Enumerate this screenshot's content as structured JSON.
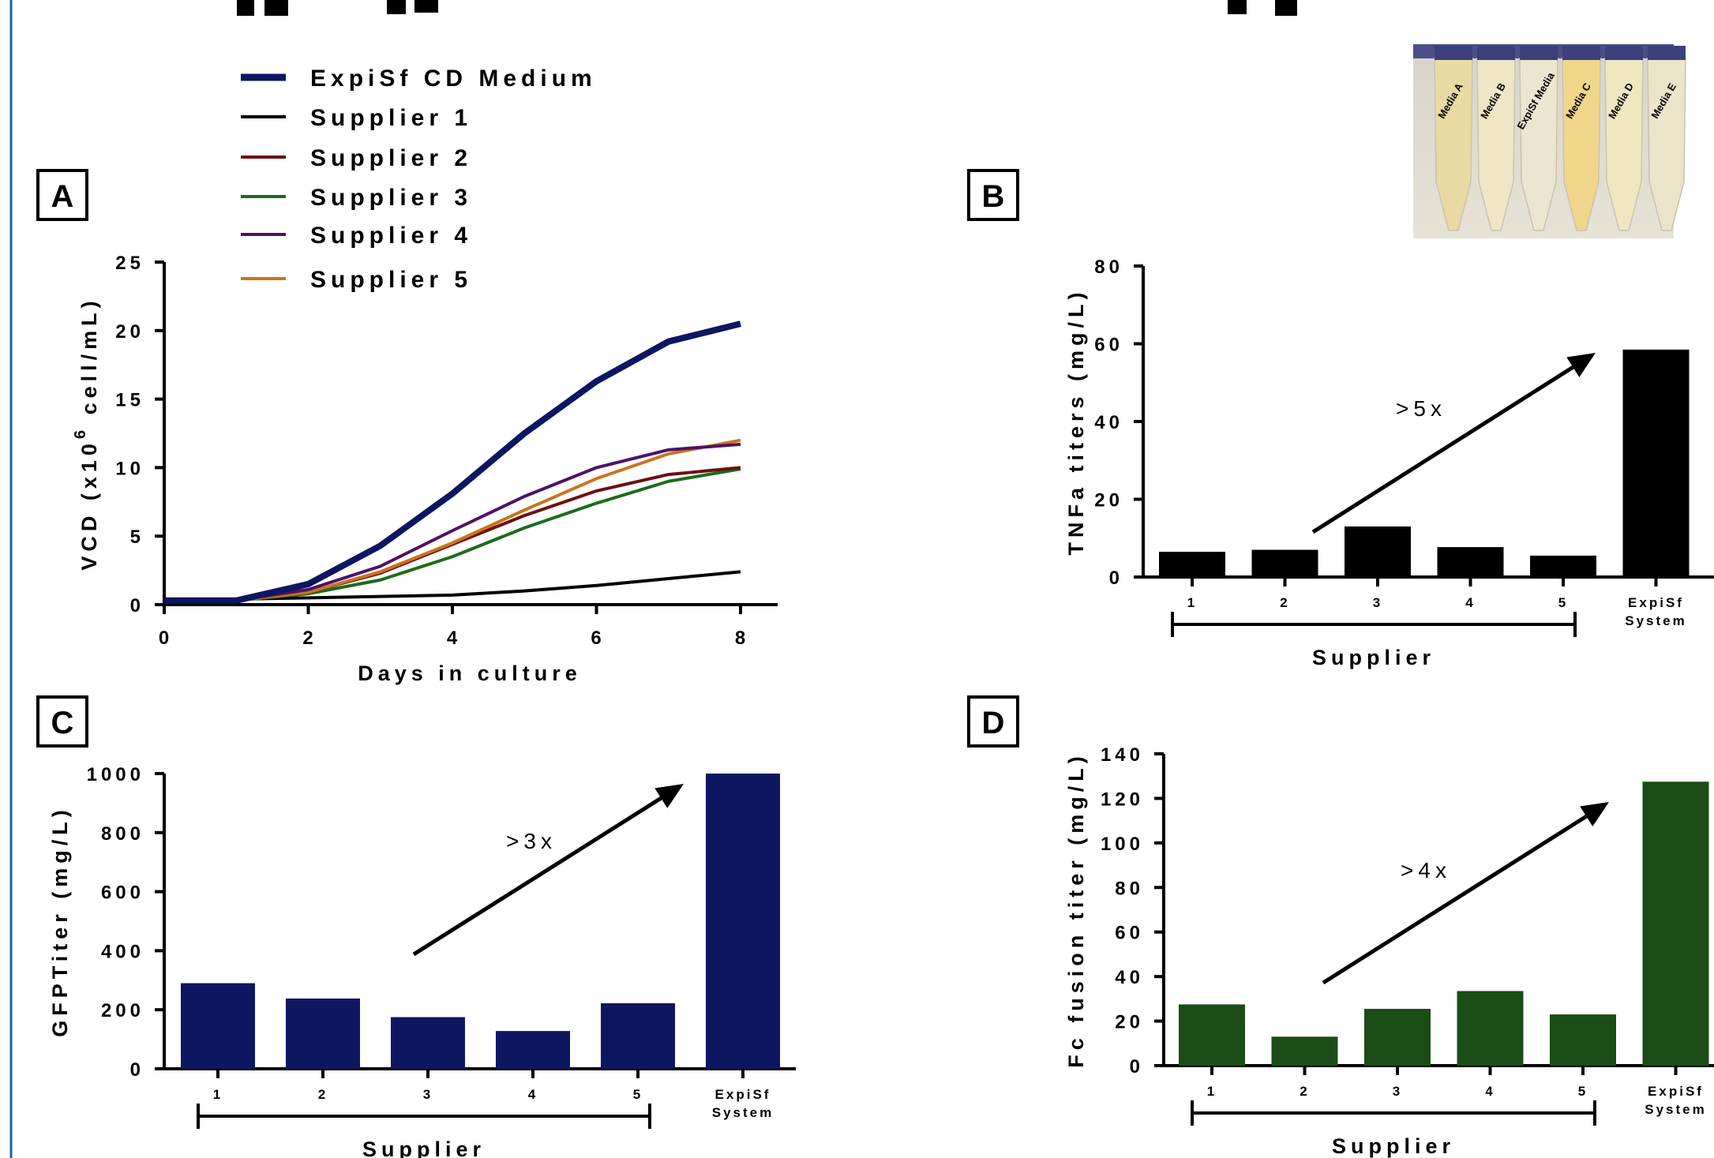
{
  "panels": {
    "A": "A",
    "B": "B",
    "C": "C",
    "D": "D"
  },
  "legend": [
    {
      "name": "ExpiSf CD Medium",
      "color": "#0d1660"
    },
    {
      "name": "Supplier 1",
      "color": "#000000"
    },
    {
      "name": "Supplier 2",
      "color": "#6e0f10"
    },
    {
      "name": "Supplier 3",
      "color": "#1c6b1c"
    },
    {
      "name": "Supplier 4",
      "color": "#4d1266"
    },
    {
      "name": "Supplier 5",
      "color": "#c9741e"
    }
  ],
  "photo": {
    "tube_labels": [
      "Media A",
      "Media B",
      "ExpiSf Media",
      "Media C",
      "Media D",
      "Media E"
    ]
  },
  "chart_data": [
    {
      "panel": "A",
      "type": "line",
      "xlabel": "Days in culture",
      "ylabel": "VCD (x10^6 cell/mL)",
      "xlim": [
        0,
        8
      ],
      "ylim": [
        0,
        25
      ],
      "xticks": [
        "0",
        "2",
        "4",
        "6",
        "8"
      ],
      "yticks": [
        "0",
        "5",
        "10",
        "15",
        "20",
        "25"
      ],
      "x": [
        0,
        1,
        2,
        3,
        4,
        5,
        6,
        7,
        8
      ],
      "series": [
        {
          "name": "ExpiSf CD Medium",
          "color": "#0d1660",
          "values": [
            0.3,
            0.3,
            1.5,
            4.3,
            8.1,
            12.5,
            16.3,
            19.2,
            20.5
          ]
        },
        {
          "name": "Supplier 1",
          "color": "#000000",
          "values": [
            0.4,
            0.4,
            0.5,
            0.6,
            0.7,
            1.0,
            1.4,
            1.9,
            2.4
          ]
        },
        {
          "name": "Supplier 2",
          "color": "#6e0f10",
          "values": [
            0.3,
            0.3,
            0.9,
            2.3,
            4.4,
            6.5,
            8.3,
            9.5,
            10.0
          ]
        },
        {
          "name": "Supplier 3",
          "color": "#1c6b1c",
          "values": [
            0.3,
            0.3,
            0.8,
            1.8,
            3.5,
            5.6,
            7.4,
            9.0,
            9.9
          ]
        },
        {
          "name": "Supplier 4",
          "color": "#4d1266",
          "values": [
            0.3,
            0.3,
            1.1,
            2.8,
            5.4,
            7.9,
            10.0,
            11.3,
            11.7
          ]
        },
        {
          "name": "Supplier 5",
          "color": "#c9741e",
          "values": [
            0.3,
            0.3,
            0.9,
            2.4,
            4.5,
            6.9,
            9.2,
            11.0,
            12.0
          ]
        }
      ]
    },
    {
      "panel": "B",
      "type": "bar",
      "ylabel": "TNFa titers (mg/L)",
      "xlabel": "Supplier",
      "ylim": [
        0,
        80
      ],
      "yticks": [
        "0",
        "20",
        "40",
        "60",
        "80"
      ],
      "categories": [
        "1",
        "2",
        "3",
        "4",
        "5",
        "ExpiSf System"
      ],
      "values": [
        6.5,
        7,
        13,
        7.7,
        5.5,
        58.5
      ],
      "color": "#000000",
      "annotation": ">5x"
    },
    {
      "panel": "C",
      "type": "bar",
      "ylabel": "GFPTiter (mg/L)",
      "xlabel": "Supplier",
      "ylim": [
        0,
        1000
      ],
      "yticks": [
        "0",
        "200",
        "400",
        "600",
        "800",
        "1000"
      ],
      "categories": [
        "1",
        "2",
        "3",
        "4",
        "5",
        "ExpiSf System"
      ],
      "values": [
        290,
        238,
        175,
        128,
        222,
        1000
      ],
      "color": "#0d1660",
      "annotation": ">3x"
    },
    {
      "panel": "D",
      "type": "bar",
      "ylabel": "Fc fusion titer (mg/L)",
      "xlabel": "Supplier",
      "ylim": [
        0,
        140
      ],
      "yticks": [
        "0",
        "20",
        "40",
        "60",
        "80",
        "100",
        "120",
        "140"
      ],
      "categories": [
        "1",
        "2",
        "3",
        "4",
        "5",
        "ExpiSf System"
      ],
      "values": [
        27.5,
        13,
        25.5,
        33.5,
        23,
        127.5
      ],
      "color": "#1a4d16",
      "annotation": ">4x"
    }
  ]
}
